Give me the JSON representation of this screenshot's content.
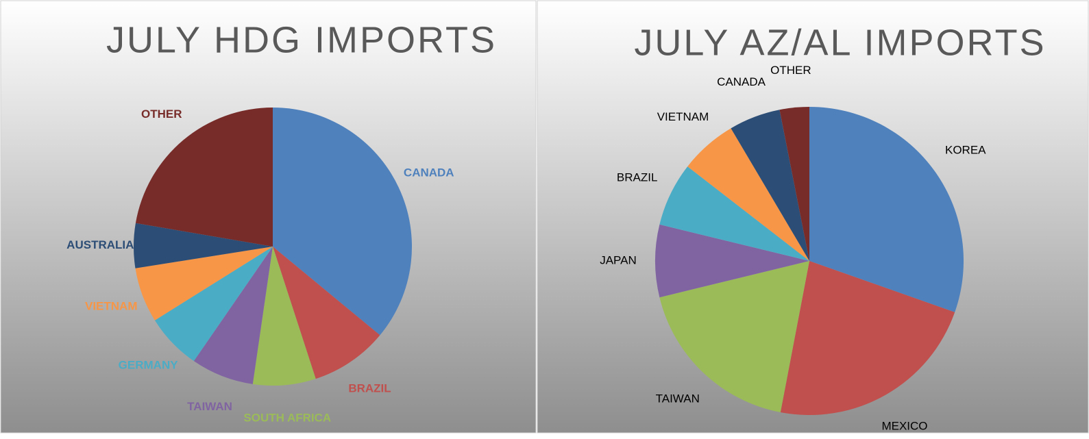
{
  "chart_data": [
    {
      "type": "pie",
      "title": "JULY HDG IMPORTS",
      "categories": [
        "CANADA",
        "BRAZIL",
        "SOUTH AFRICA",
        "TAIWAN",
        "GERMANY",
        "VIETNAM",
        "AUSTRALIA",
        "OTHER"
      ],
      "values": [
        36,
        9,
        7.3,
        7.3,
        6.5,
        6.4,
        5.2,
        22.3
      ],
      "colors": [
        "#4f81bd",
        "#c0504d",
        "#9bbb59",
        "#8064a2",
        "#4bacc6",
        "#f79646",
        "#2c4d75",
        "#772c2a"
      ]
    },
    {
      "type": "pie",
      "title": "JULY AZ/AL IMPORTS",
      "categories": [
        "KOREA",
        "MEXICO",
        "TAIWAN",
        "JAPAN",
        "BRAZIL",
        "VIETNAM",
        "CANADA",
        "OTHER"
      ],
      "values": [
        30.4,
        22.6,
        18.2,
        7.6,
        6.7,
        6,
        5.4,
        3.1
      ],
      "colors": [
        "#4f81bd",
        "#c0504d",
        "#9bbb59",
        "#8064a2",
        "#4bacc6",
        "#f79646",
        "#2c4d75",
        "#772c2a"
      ],
      "label_color": "#000000"
    }
  ]
}
